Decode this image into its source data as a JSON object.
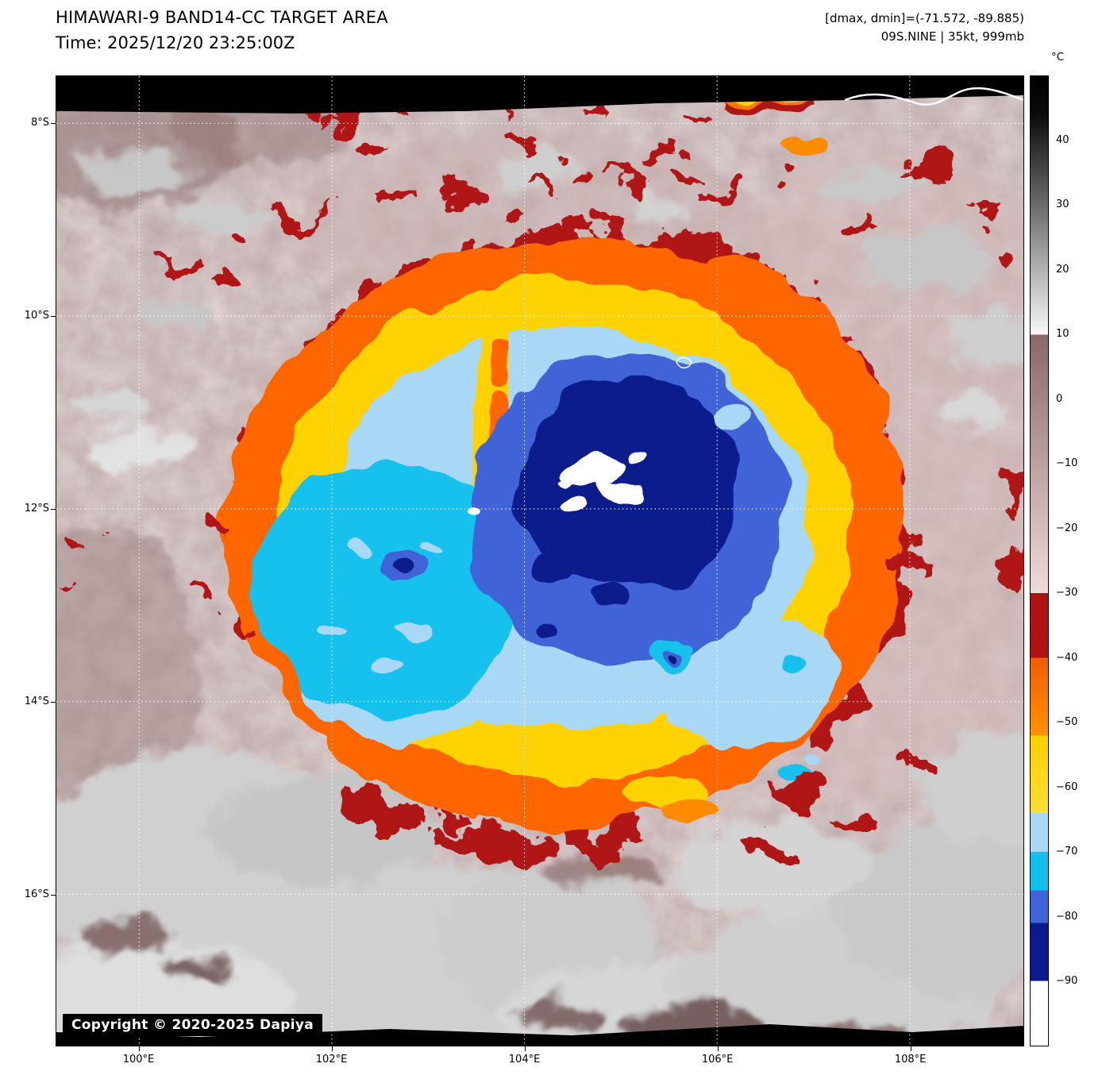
{
  "header": {
    "title": "HIMAWARI-9 BAND14-CC TARGET AREA",
    "time": "Time: 2025/12/20 23:25:00Z",
    "dmax_dmin": "[dmax, dmin]=(-71.572, -89.885)",
    "storm_info": "09S.NINE | 35kt, 999mb"
  },
  "map": {
    "copyright": "Copyright © 2020-2025 Dapiya"
  },
  "chart_data": {
    "type": "heatmap",
    "title": "HIMAWARI-9 BAND14-CC TARGET AREA",
    "subtitle": "Time: 2025/12/20 23:25:00Z",
    "description": "Infrared brightness-temperature satellite image of tropical cyclone 09S.NINE",
    "x_axis": {
      "tick_values": [
        100,
        102,
        104,
        106,
        108
      ],
      "tick_labels": [
        "100°E",
        "102°E",
        "104°E",
        "106°E",
        "108°E"
      ],
      "range_deg_e": [
        99.14,
        109.18
      ]
    },
    "y_axis": {
      "tick_values": [
        8,
        10,
        12,
        14,
        16
      ],
      "tick_labels": [
        "8°S",
        "10°S",
        "12°S",
        "14°S",
        "16°S"
      ],
      "range_deg_s": [
        7.51,
        17.57
      ]
    },
    "grid": {
      "visible": true,
      "style": "dotted",
      "color": "#ffffff"
    },
    "colorbar": {
      "unit": "°C",
      "top_value": 50,
      "bottom_value": -100,
      "tick_values": [
        40,
        30,
        20,
        10,
        0,
        -10,
        -20,
        -30,
        -40,
        -50,
        -60,
        -70,
        -80,
        -90
      ],
      "tick_labels": [
        "40",
        "30",
        "20",
        "10",
        "0",
        "−10",
        "−20",
        "−30",
        "−40",
        "−50",
        "−60",
        "−70",
        "−80",
        "−90"
      ],
      "stops": [
        {
          "v": 50,
          "color": "#000000"
        },
        {
          "v": 44,
          "color": "#0b0b0b"
        },
        {
          "v": 10,
          "color": "#f8f8f8"
        },
        {
          "v": 10,
          "color": "#8a6868"
        },
        {
          "v": -30,
          "color": "#efdada"
        },
        {
          "v": -30,
          "color": "#b01313"
        },
        {
          "v": -40,
          "color": "#b01313"
        },
        {
          "v": -40,
          "color": "#f25c00"
        },
        {
          "v": -52,
          "color": "#ff9300"
        },
        {
          "v": -52,
          "color": "#ffcf00"
        },
        {
          "v": -64,
          "color": "#ffdf33"
        },
        {
          "v": -64,
          "color": "#a9d7f6"
        },
        {
          "v": -70,
          "color": "#a9d7f6"
        },
        {
          "v": -70,
          "color": "#12c0ee"
        },
        {
          "v": -76,
          "color": "#12c0ee"
        },
        {
          "v": -76,
          "color": "#3f63d8"
        },
        {
          "v": -81,
          "color": "#3f63d8"
        },
        {
          "v": -81,
          "color": "#0c1a8c"
        },
        {
          "v": -90,
          "color": "#0c1a8c"
        },
        {
          "v": -90,
          "color": "#ffffff"
        },
        {
          "v": -100,
          "color": "#ffffff"
        }
      ]
    },
    "annotations": {
      "dmax_dmin": "[dmax, dmin]=(-71.572, -89.885)",
      "storm": "09S.NINE | 35kt, 999mb",
      "copyright": "Copyright © 2020-2025 Dapiya"
    },
    "observed_values": {
      "dmax_c": -71.572,
      "dmin_c": -89.885,
      "storm_id": "09S.NINE",
      "wind_kt": 35,
      "pressure_mb": 999
    }
  }
}
